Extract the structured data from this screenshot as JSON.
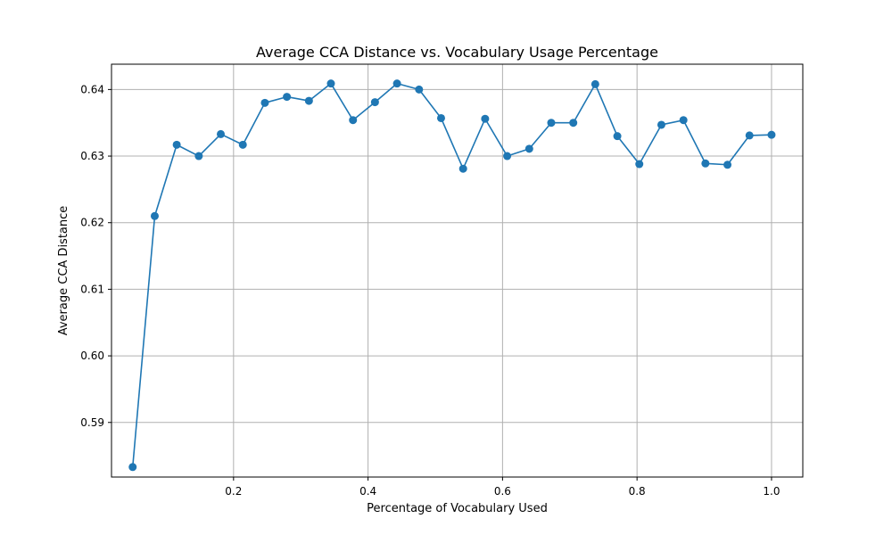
{
  "chart_data": {
    "type": "line",
    "title": "Average CCA Distance vs. Vocabulary Usage Percentage",
    "xlabel": "Percentage of Vocabulary Used",
    "ylabel": "Average CCA Distance",
    "xlim": [
      0.0185,
      1.0465
    ],
    "ylim": [
      0.5818,
      0.6438
    ],
    "grid": true,
    "x_ticks": [
      {
        "value": 0.2,
        "label": "0.2"
      },
      {
        "value": 0.4,
        "label": "0.4"
      },
      {
        "value": 0.6,
        "label": "0.6"
      },
      {
        "value": 0.8,
        "label": "0.8"
      },
      {
        "value": 1.0,
        "label": "1.0"
      }
    ],
    "y_ticks": [
      {
        "value": 0.59,
        "label": "0.59"
      },
      {
        "value": 0.6,
        "label": "0.60"
      },
      {
        "value": 0.61,
        "label": "0.61"
      },
      {
        "value": 0.62,
        "label": "0.62"
      },
      {
        "value": 0.63,
        "label": "0.63"
      },
      {
        "value": 0.64,
        "label": "0.64"
      }
    ],
    "series": [
      {
        "color": "#1f77b4",
        "x": [
          0.05,
          0.0828,
          0.1155,
          0.1483,
          0.181,
          0.2138,
          0.2466,
          0.2793,
          0.3121,
          0.3448,
          0.3776,
          0.4103,
          0.4431,
          0.4759,
          0.5086,
          0.5414,
          0.5741,
          0.6069,
          0.6397,
          0.6724,
          0.7052,
          0.7379,
          0.7707,
          0.8034,
          0.8362,
          0.869,
          0.9017,
          0.9345,
          0.9672,
          1.0
        ],
        "y": [
          0.5833,
          0.621,
          0.6317,
          0.63,
          0.6333,
          0.6317,
          0.638,
          0.6389,
          0.6383,
          0.6409,
          0.6354,
          0.6381,
          0.6409,
          0.64,
          0.6357,
          0.6281,
          0.6356,
          0.63,
          0.6311,
          0.635,
          0.635,
          0.6408,
          0.633,
          0.6288,
          0.6347,
          0.6354,
          0.6289,
          0.6287,
          0.6331,
          0.6332
        ]
      }
    ]
  }
}
